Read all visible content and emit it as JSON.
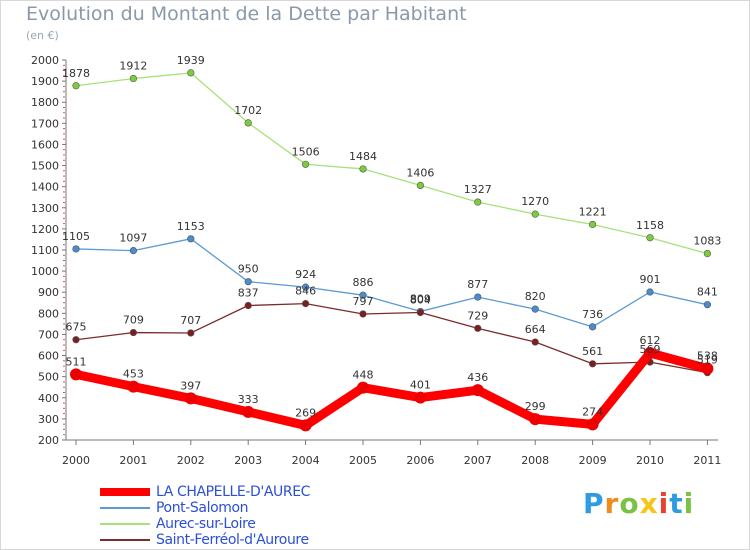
{
  "header": {
    "title": "Evolution du Montant de la Dette par Habitant",
    "subtitle": "(en €)"
  },
  "chart_data": {
    "type": "line",
    "x": [
      "2000",
      "2001",
      "2002",
      "2003",
      "2004",
      "2005",
      "2006",
      "2007",
      "2008",
      "2009",
      "2010",
      "2011"
    ],
    "ylim": [
      200,
      2000
    ],
    "yticks": [
      200,
      300,
      400,
      500,
      600,
      700,
      800,
      900,
      1000,
      1100,
      1200,
      1300,
      1400,
      1500,
      1600,
      1700,
      1800,
      1900,
      2000
    ],
    "grid": false,
    "legend_position": "bottom-left",
    "series": [
      {
        "name": "LA CHAPELLE-D'AUREC",
        "color": "#ff0000",
        "marker_color": "#ee0000",
        "values": [
          511,
          453,
          397,
          333,
          269,
          448,
          401,
          436,
          299,
          274,
          612,
          538
        ]
      },
      {
        "name": "Pont-Salomon",
        "color": "#5b9bd5",
        "marker_color": "#4a8ccd",
        "values": [
          1105,
          1097,
          1153,
          950,
          924,
          886,
          809,
          877,
          820,
          736,
          901,
          841
        ]
      },
      {
        "name": "Aurec-sur-Loire",
        "color": "#a8e07a",
        "marker_color": "#7ccd3c",
        "values": [
          1878,
          1912,
          1939,
          1702,
          1506,
          1484,
          1406,
          1327,
          1270,
          1221,
          1158,
          1083
        ]
      },
      {
        "name": "Saint-Ferréol-d'Auroure",
        "color": "#7b2b2b",
        "marker_color": "#7b2020",
        "values": [
          675,
          709,
          707,
          837,
          846,
          797,
          804,
          729,
          664,
          561,
          569,
          519
        ]
      }
    ]
  },
  "logo": {
    "letters": [
      "P",
      "r",
      "o",
      "x",
      "i",
      "t",
      "i"
    ],
    "colors": [
      "#2f9be0",
      "#f28b1d",
      "#7cc242",
      "#f5c518",
      "#e8412c",
      "#2f9be0",
      "#7cc242"
    ]
  }
}
